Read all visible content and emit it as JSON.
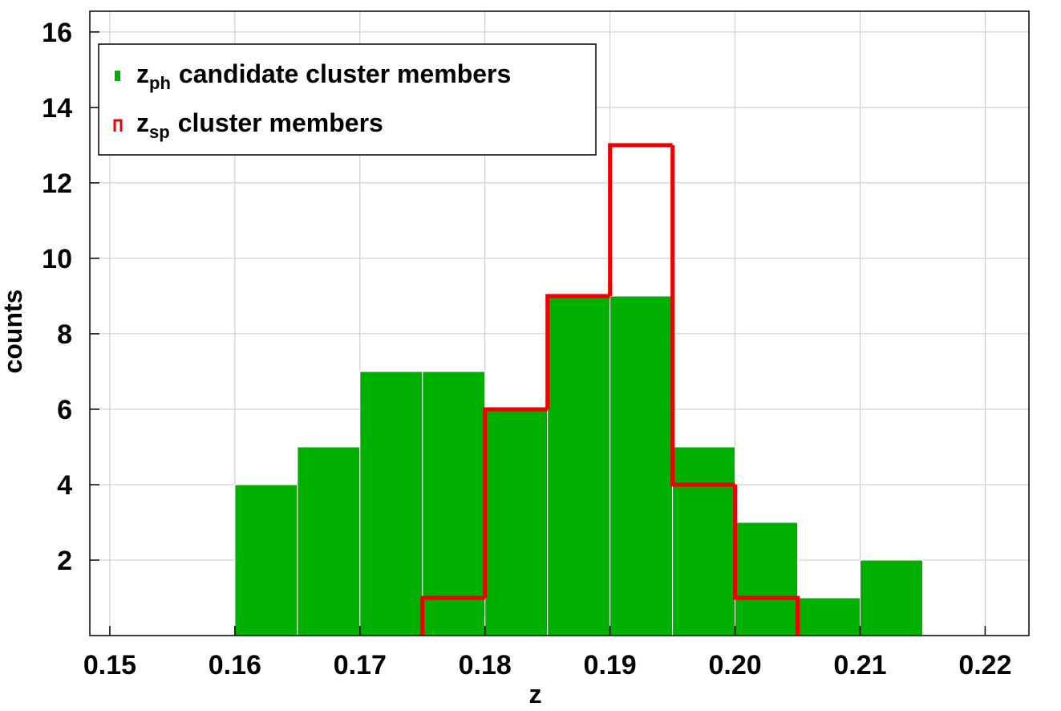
{
  "chart_data": {
    "type": "histogram",
    "x_label": "z",
    "y_label": "counts",
    "xlim": [
      0.1484,
      0.2235
    ],
    "ylim": [
      0,
      16.55
    ],
    "xticks": [
      0.15,
      0.16,
      0.17,
      0.18,
      0.19,
      {
        "value": 0.2,
        "label": "0.20"
      },
      0.21,
      0.22
    ],
    "yticks": [
      2,
      4,
      6,
      8,
      10,
      12,
      14,
      16
    ],
    "grid": true,
    "legend": "upper-left",
    "series": [
      {
        "name": [
          "z",
          "ph",
          "candidate cluster members"
        ],
        "color": "#00b000",
        "style": "filled",
        "bins": [
          0.16,
          0.165,
          0.17,
          0.175,
          0.18,
          0.185,
          0.19,
          0.195,
          0.2,
          0.205,
          0.21,
          0.215
        ],
        "values": [
          4,
          5,
          7,
          7,
          6,
          9,
          9,
          5,
          3,
          1,
          2
        ]
      },
      {
        "name": [
          "z",
          "sp",
          "cluster members"
        ],
        "color": "#ee0000",
        "style": "step",
        "bins": [
          0.175,
          0.18,
          0.185,
          0.19,
          0.195,
          0.2,
          0.205
        ],
        "values": [
          1,
          6,
          9,
          13,
          4,
          1
        ]
      }
    ]
  }
}
